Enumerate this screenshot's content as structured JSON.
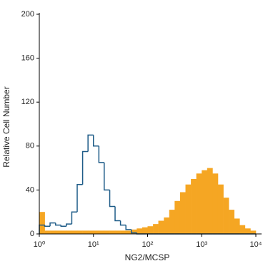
{
  "chart_data": {
    "type": "histogram",
    "xlabel": "NG2/MCSP",
    "ylabel": "Relative Cell Number",
    "xscale": "log",
    "bins": [
      1,
      1.26,
      1.58,
      2,
      2.51,
      3.16,
      3.98,
      5.01,
      6.31,
      7.94,
      10,
      12.6,
      15.8,
      20,
      25.1,
      31.6,
      39.8,
      50.1,
      63.1,
      79.4,
      100,
      126,
      158,
      200,
      251,
      316,
      398,
      501,
      631,
      794,
      1000,
      1259,
      1585,
      1995,
      2512,
      3162,
      3981,
      5012,
      6310,
      7943,
      10000
    ],
    "series": [
      {
        "color": "#f5a623",
        "fill": true,
        "values": [
          20,
          3,
          3,
          3,
          3,
          3,
          3,
          3,
          3,
          3,
          3,
          3,
          3,
          3,
          3,
          3,
          3,
          4,
          5,
          6,
          7,
          9,
          12,
          15,
          22,
          30,
          38,
          45,
          50,
          55,
          58,
          60,
          55,
          45,
          33,
          22,
          14,
          8,
          5,
          3
        ]
      },
      {
        "color": "#1d5b87",
        "fill": false,
        "values": [
          8,
          7,
          10,
          8,
          7,
          9,
          20,
          45,
          75,
          90,
          80,
          65,
          40,
          25,
          12,
          8,
          4,
          1,
          0,
          0,
          0,
          0,
          0,
          0,
          0,
          0,
          0,
          0,
          0,
          0,
          0,
          0,
          0,
          0,
          0,
          0,
          0,
          0,
          0,
          0
        ]
      }
    ],
    "xlim": [
      1,
      10000
    ],
    "xticks": [
      {
        "value": 1,
        "label": "10⁰"
      },
      {
        "value": 10,
        "label": "10¹"
      },
      {
        "value": 100,
        "label": "10²"
      },
      {
        "value": 1000,
        "label": "10³"
      },
      {
        "value": 10000,
        "label": "10⁴"
      }
    ],
    "ylim": [
      0,
      200
    ],
    "yticks": [
      0,
      40,
      80,
      120,
      160,
      200
    ]
  }
}
